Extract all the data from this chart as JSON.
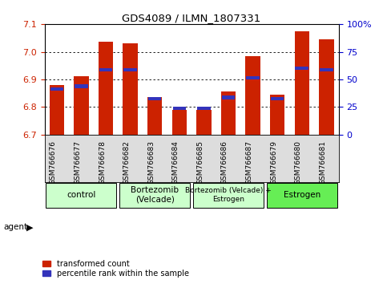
{
  "title": "GDS4089 / ILMN_1807331",
  "samples": [
    "GSM766676",
    "GSM766677",
    "GSM766678",
    "GSM766682",
    "GSM766683",
    "GSM766684",
    "GSM766685",
    "GSM766686",
    "GSM766687",
    "GSM766679",
    "GSM766680",
    "GSM766681"
  ],
  "red_values": [
    6.88,
    6.91,
    7.035,
    7.03,
    6.835,
    6.79,
    6.79,
    6.855,
    6.985,
    6.845,
    7.075,
    7.045
  ],
  "blue_values": [
    6.865,
    6.875,
    6.935,
    6.935,
    6.83,
    6.795,
    6.795,
    6.835,
    6.905,
    6.83,
    6.94,
    6.935
  ],
  "ymin": 6.7,
  "ymax": 7.1,
  "yticks_left": [
    6.7,
    6.8,
    6.9,
    7.0,
    7.1
  ],
  "yticks_right": [
    0,
    25,
    50,
    75,
    100
  ],
  "bar_color": "#cc2200",
  "blue_color": "#3333bb",
  "bar_width": 0.6,
  "group_positions": [
    {
      "start": 0,
      "end": 2,
      "label": "control",
      "color": "#ccffcc"
    },
    {
      "start": 3,
      "end": 5,
      "label": "Bortezomib\n(Velcade)",
      "color": "#ccffcc"
    },
    {
      "start": 6,
      "end": 8,
      "label": "Bortezomib (Velcade) +\nEstrogen",
      "color": "#ccffcc"
    },
    {
      "start": 9,
      "end": 11,
      "label": "Estrogen",
      "color": "#66ee55"
    }
  ],
  "agent_label": "agent",
  "legend_red": "transformed count",
  "legend_blue": "percentile rank within the sample",
  "background_color": "#ffffff",
  "tick_label_color_left": "#cc2200",
  "tick_label_color_right": "#0000cc",
  "ticklabel_bg": "#dddddd"
}
